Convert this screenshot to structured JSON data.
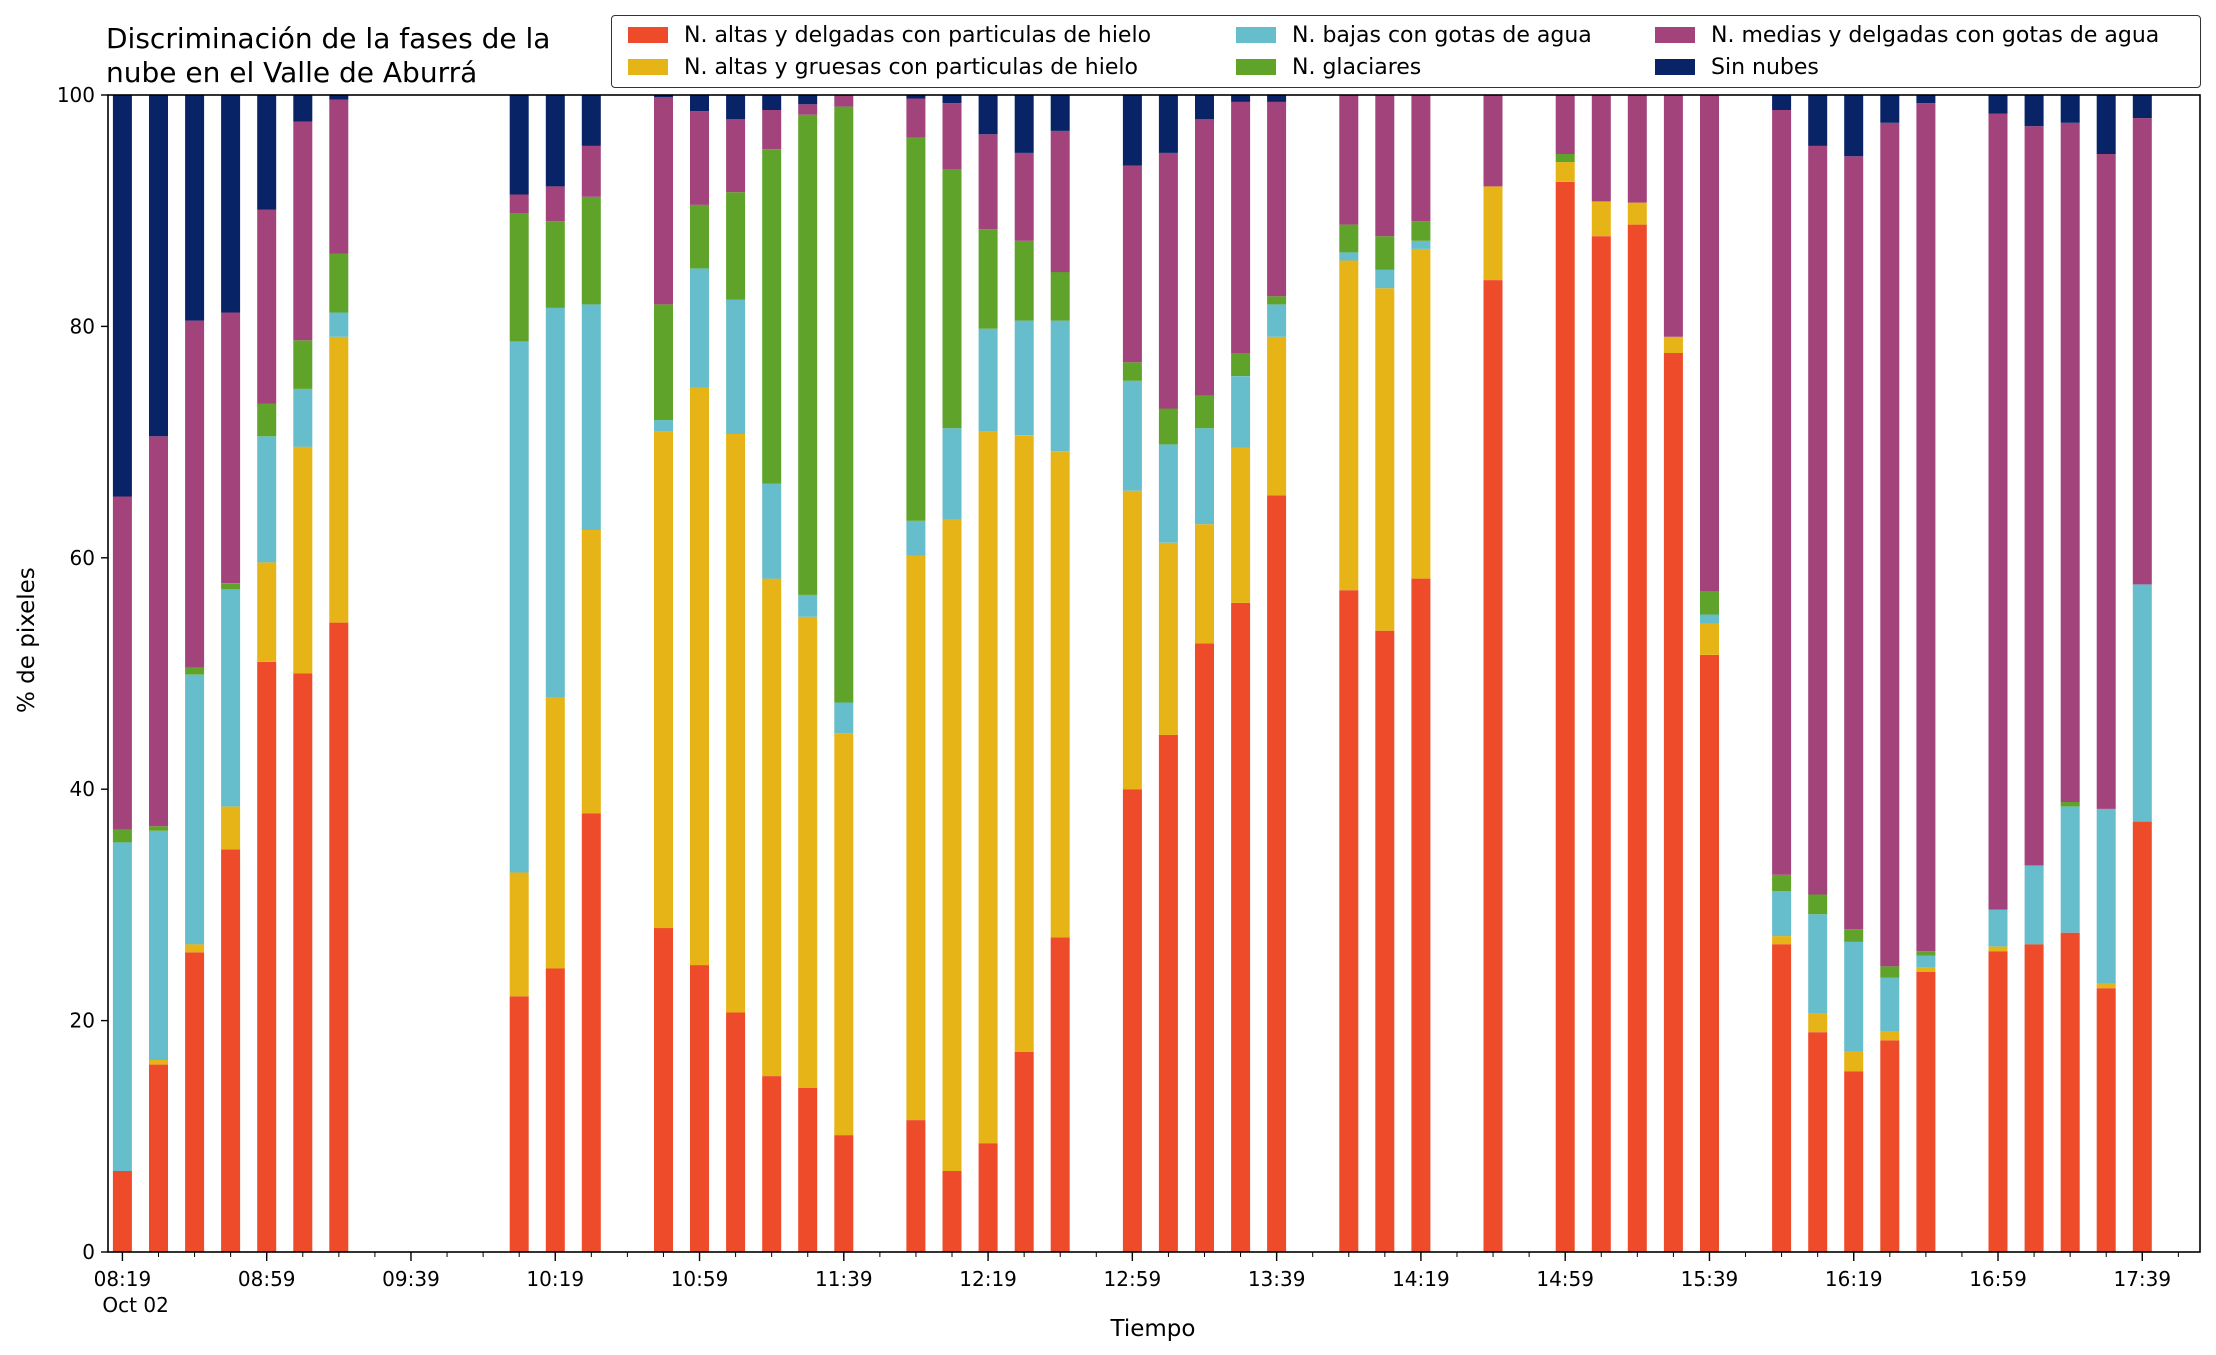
{
  "chart_data": {
    "type": "bar",
    "stacked": true,
    "title": "Discriminación de la fases de la nube en el Valle de Aburrá",
    "xlabel": "Tiempo",
    "ylabel": "% de pixeles",
    "ylim": [
      0,
      100
    ],
    "yticks": [
      0,
      20,
      40,
      60,
      80,
      100
    ],
    "grid": false,
    "legend_position": "top-right",
    "xlim_minutes": [
      "08:15",
      "17:55"
    ],
    "xtick_labels": [
      {
        "time": "08:19",
        "label": "08:19",
        "sublabel": "Oct 02"
      },
      {
        "time": "08:59",
        "label": "08:59"
      },
      {
        "time": "09:39",
        "label": "09:39"
      },
      {
        "time": "10:19",
        "label": "10:19"
      },
      {
        "time": "10:59",
        "label": "10:59"
      },
      {
        "time": "11:39",
        "label": "11:39"
      },
      {
        "time": "12:19",
        "label": "12:19"
      },
      {
        "time": "12:59",
        "label": "12:59"
      },
      {
        "time": "13:39",
        "label": "13:39"
      },
      {
        "time": "14:19",
        "label": "14:19"
      },
      {
        "time": "14:59",
        "label": "14:59"
      },
      {
        "time": "15:39",
        "label": "15:39"
      },
      {
        "time": "16:19",
        "label": "16:19"
      },
      {
        "time": "16:59",
        "label": "16:59"
      },
      {
        "time": "17:39",
        "label": "17:39"
      }
    ],
    "series": [
      {
        "name": "N. altas y delgadas con particulas de hielo",
        "color": "#ee4b2b"
      },
      {
        "name": "N. altas y gruesas con particulas de hielo",
        "color": "#e6b417"
      },
      {
        "name": "N. bajas con gotas de agua",
        "color": "#66bdcb"
      },
      {
        "name": "N. glaciares",
        "color": "#5fa32a"
      },
      {
        "name": "N. medias y delgadas con gotas de agua",
        "color": "#a2437c"
      },
      {
        "name": "Sin nubes",
        "color": "#082366"
      }
    ],
    "bars": [
      {
        "time": "08:19",
        "values": [
          7.0,
          0.0,
          28.4,
          1.1,
          28.8,
          34.7
        ]
      },
      {
        "time": "08:29",
        "values": [
          16.2,
          0.4,
          19.8,
          0.4,
          33.7,
          29.5
        ]
      },
      {
        "time": "08:39",
        "values": [
          25.9,
          0.7,
          23.3,
          0.6,
          30.0,
          19.5
        ]
      },
      {
        "time": "08:49",
        "values": [
          34.8,
          3.7,
          18.8,
          0.5,
          23.4,
          18.8
        ]
      },
      {
        "time": "08:59",
        "values": [
          51.0,
          8.6,
          10.9,
          2.8,
          16.8,
          9.9
        ]
      },
      {
        "time": "09:09",
        "values": [
          50.0,
          19.6,
          5.0,
          4.2,
          18.9,
          2.3
        ]
      },
      {
        "time": "09:19",
        "values": [
          54.4,
          24.7,
          2.1,
          5.1,
          13.3,
          0.4
        ]
      },
      {
        "time": "10:09",
        "values": [
          22.1,
          10.7,
          45.9,
          11.1,
          1.6,
          8.6
        ]
      },
      {
        "time": "10:19",
        "values": [
          24.5,
          23.4,
          33.7,
          7.5,
          3.0,
          7.9
        ]
      },
      {
        "time": "10:29",
        "values": [
          37.9,
          24.5,
          19.5,
          9.3,
          4.4,
          4.4
        ]
      },
      {
        "time": "10:49",
        "values": [
          28.0,
          42.9,
          1.0,
          10.0,
          17.9,
          0.2
        ]
      },
      {
        "time": "10:59",
        "values": [
          24.8,
          49.9,
          10.3,
          5.5,
          8.1,
          1.4
        ]
      },
      {
        "time": "11:09",
        "values": [
          20.7,
          50.0,
          11.6,
          9.3,
          6.3,
          2.1
        ]
      },
      {
        "time": "11:19",
        "values": [
          15.2,
          43.0,
          8.2,
          28.9,
          3.4,
          1.3
        ]
      },
      {
        "time": "11:29",
        "values": [
          14.2,
          40.7,
          1.9,
          41.5,
          0.9,
          0.8
        ]
      },
      {
        "time": "11:39",
        "values": [
          10.1,
          34.7,
          2.7,
          51.5,
          1.0,
          0.0
        ]
      },
      {
        "time": "11:59",
        "values": [
          11.4,
          48.8,
          3.0,
          33.1,
          3.4,
          0.3
        ]
      },
      {
        "time": "12:09",
        "values": [
          7.0,
          56.3,
          7.9,
          22.4,
          5.7,
          0.7
        ]
      },
      {
        "time": "12:19",
        "values": [
          9.4,
          61.5,
          8.9,
          8.6,
          8.2,
          3.4
        ]
      },
      {
        "time": "12:29",
        "values": [
          17.3,
          53.3,
          9.9,
          6.9,
          7.6,
          5.0
        ]
      },
      {
        "time": "12:39",
        "values": [
          27.2,
          42.0,
          11.3,
          4.2,
          12.2,
          3.1
        ]
      },
      {
        "time": "12:59",
        "values": [
          40.0,
          25.8,
          9.5,
          1.6,
          17.0,
          6.1
        ]
      },
      {
        "time": "13:09",
        "values": [
          44.7,
          16.6,
          8.5,
          3.1,
          22.1,
          5.0
        ]
      },
      {
        "time": "13:19",
        "values": [
          52.6,
          10.3,
          8.3,
          2.8,
          23.9,
          2.1
        ]
      },
      {
        "time": "13:29",
        "values": [
          56.1,
          13.4,
          6.2,
          2.0,
          21.7,
          0.6
        ]
      },
      {
        "time": "13:39",
        "values": [
          65.4,
          13.7,
          2.8,
          0.7,
          16.8,
          0.6
        ]
      },
      {
        "time": "13:59",
        "values": [
          57.2,
          28.5,
          0.7,
          2.4,
          11.2,
          0.0
        ]
      },
      {
        "time": "14:09",
        "values": [
          53.7,
          29.6,
          1.6,
          2.9,
          12.2,
          0.0
        ]
      },
      {
        "time": "14:19",
        "values": [
          58.2,
          28.5,
          0.7,
          1.7,
          10.9,
          0.0
        ]
      },
      {
        "time": "14:39",
        "values": [
          84.0,
          8.1,
          0.0,
          0.0,
          7.9,
          0.0
        ]
      },
      {
        "time": "14:59",
        "values": [
          92.5,
          1.7,
          0.0,
          0.7,
          5.1,
          0.0
        ]
      },
      {
        "time": "15:09",
        "values": [
          87.8,
          3.0,
          0.0,
          0.0,
          9.2,
          0.0
        ]
      },
      {
        "time": "15:19",
        "values": [
          88.8,
          1.9,
          0.0,
          0.0,
          9.3,
          0.0
        ]
      },
      {
        "time": "15:29",
        "values": [
          77.7,
          1.4,
          0.0,
          0.0,
          20.9,
          0.0
        ]
      },
      {
        "time": "15:39",
        "values": [
          51.6,
          2.7,
          0.8,
          2.0,
          42.9,
          0.0
        ]
      },
      {
        "time": "15:59",
        "values": [
          26.6,
          0.7,
          3.9,
          1.4,
          66.1,
          1.3
        ]
      },
      {
        "time": "16:09",
        "values": [
          19.0,
          1.6,
          8.6,
          1.7,
          64.7,
          4.4
        ]
      },
      {
        "time": "16:19",
        "values": [
          15.6,
          1.7,
          9.5,
          1.1,
          66.8,
          5.3
        ]
      },
      {
        "time": "16:29",
        "values": [
          18.3,
          0.8,
          4.6,
          1.0,
          72.9,
          2.4
        ]
      },
      {
        "time": "16:39",
        "values": [
          24.2,
          0.4,
          1.0,
          0.4,
          73.3,
          0.7
        ]
      },
      {
        "time": "16:59",
        "values": [
          26.0,
          0.4,
          3.2,
          0.0,
          68.8,
          1.6
        ]
      },
      {
        "time": "17:09",
        "values": [
          26.6,
          0.0,
          6.8,
          0.0,
          63.9,
          2.7
        ]
      },
      {
        "time": "17:19",
        "values": [
          27.6,
          0.0,
          10.9,
          0.4,
          58.7,
          2.4
        ]
      },
      {
        "time": "17:29",
        "values": [
          22.8,
          0.4,
          15.1,
          0.0,
          56.6,
          5.1
        ]
      },
      {
        "time": "17:39",
        "values": [
          37.2,
          0.0,
          20.5,
          0.0,
          40.3,
          2.0
        ]
      }
    ]
  }
}
